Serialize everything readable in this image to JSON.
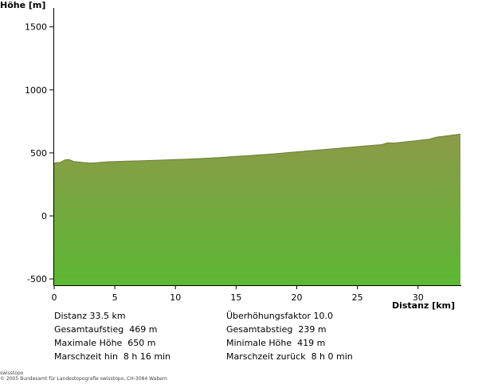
{
  "chart_data": {
    "type": "area",
    "title": "",
    "ylabel": "Höhe [m]",
    "xlabel": "Distanz [km]",
    "xlim": [
      0,
      33.5
    ],
    "ylim": [
      -550,
      1650
    ],
    "x_ticks": [
      0,
      5,
      10,
      15,
      20,
      25,
      30
    ],
    "y_ticks": [
      -500,
      0,
      500,
      1000,
      1500
    ],
    "grid": false,
    "series": [
      {
        "fill_top": "#8c9a48",
        "fill_bottom": "#5cb834",
        "x": [
          0,
          0.5,
          0.9,
          1.2,
          1.6,
          2.0,
          2.5,
          3.0,
          3.5,
          4.0,
          4.5,
          5.0,
          6.0,
          7.0,
          8.0,
          9.0,
          10.0,
          11.0,
          12.0,
          13.0,
          14.0,
          15.0,
          16.0,
          17.0,
          18.0,
          19.0,
          20.0,
          21.0,
          22.0,
          23.0,
          24.0,
          25.0,
          26.0,
          27.0,
          27.5,
          28.0,
          29.0,
          30.0,
          31.0,
          31.5,
          32.0,
          32.5,
          33.0,
          33.5
        ],
        "y": [
          420,
          425,
          445,
          448,
          432,
          428,
          423,
          420,
          422,
          426,
          430,
          432,
          435,
          437,
          440,
          443,
          447,
          450,
          455,
          460,
          465,
          472,
          478,
          485,
          492,
          500,
          508,
          517,
          525,
          533,
          541,
          550,
          558,
          566,
          580,
          578,
          588,
          598,
          610,
          625,
          630,
          637,
          643,
          650
        ]
      }
    ]
  },
  "stats_left": [
    "Distanz 33.5 km",
    "Gesamtaufstieg  469 m",
    "Maximale Höhe  650 m",
    "Marschzeit hin  8 h 16 min"
  ],
  "stats_right": [
    "Überhöhungsfaktor 10.0",
    "Gesamtabstieg  239 m",
    "Minimale Höhe  419 m",
    "Marschzeit zurück  8 h 0 min"
  ],
  "footer": {
    "line1": "swisstopo",
    "line2": "© 2005 Bundesamt für Landestopografie swisstopo, CH-3084 Wabern"
  }
}
